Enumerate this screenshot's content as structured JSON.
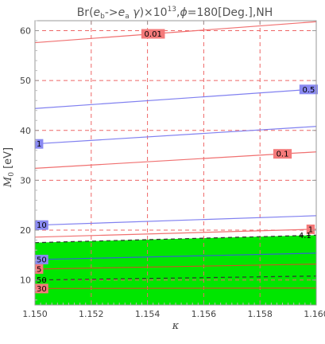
{
  "chart_data": {
    "type": "contour",
    "title": "Br(e_b->e_a γ)×10^13,φ=180[Deg.],NH",
    "xlabel": "κ",
    "ylabel": "M_0 [eV]",
    "xlim": [
      1.15,
      1.16
    ],
    "ylim": [
      5,
      62
    ],
    "x_ticks": [
      "1.150",
      "1.152",
      "1.154",
      "1.156",
      "1.158",
      "1.160"
    ],
    "y_ticks": [
      "10",
      "20",
      "30",
      "40",
      "50",
      "60"
    ],
    "grid": "dashed red at x ticks 1.152-1.158 and y ticks 10-60",
    "excluded_region": {
      "color": "#00e600",
      "y_bottom": 5,
      "y_top_at_x_min": 17.5,
      "y_top_at_x_max": 19.0
    },
    "contours": [
      {
        "label": "0.01",
        "color": "#f07070",
        "y_at_x_min": 57.6,
        "y_at_x_max": 61.8,
        "label_x": 1.1542,
        "label_bg": "#f47a7a"
      },
      {
        "label": "0.5",
        "color": "#8080f0",
        "y_at_x_min": 44.4,
        "y_at_x_max": 48.3,
        "label_x": 1.1598,
        "label_bg": "#8a8af2"
      },
      {
        "label": "1",
        "color": "#8080f0",
        "y_at_x_min": 37.3,
        "y_at_x_max": 40.8,
        "label_x": 1.15,
        "label_bg": "#8a8af2"
      },
      {
        "label": "0.1",
        "color": "#f07070",
        "y_at_x_min": 32.4,
        "y_at_x_max": 35.7,
        "label_x": 1.1588,
        "label_bg": "#f47a7a"
      },
      {
        "label": "10",
        "color": "#8080f0",
        "y_at_x_min": 21.0,
        "y_at_x_max": 22.9,
        "label_x": 1.1501,
        "label_bg": "#8a8af2"
      },
      {
        "label": "1",
        "color": "#f07070",
        "y_at_x_min": 18.6,
        "y_at_x_max": 20.2,
        "label_x": 1.1598,
        "label_bg": "#f47a7a"
      },
      {
        "label": "4.1",
        "color": "#333333",
        "dashed": true,
        "y_at_x_min": 17.5,
        "y_at_x_max": 19.0,
        "label_x": 1.1596,
        "label_bg": "none"
      },
      {
        "label": "50",
        "color": "#3366cc",
        "y_at_x_min": 14.1,
        "y_at_x_max": 15.4,
        "label_x": 1.1501,
        "label_bg": "#8a8af2"
      },
      {
        "label": "5",
        "color": "#cc5522",
        "y_at_x_min": 12.2,
        "y_at_x_max": 13.2,
        "label_x": 1.1501,
        "label_bg": "#f47a7a"
      },
      {
        "label": "50",
        "color": "#333333",
        "dashed": true,
        "y_at_x_min": 10.0,
        "y_at_x_max": 10.8,
        "label_x": 1.1502,
        "label_bg": "none"
      },
      {
        "label": "30",
        "color": "#cc5522",
        "y_at_x_min": 8.3,
        "y_at_x_max": 8.4,
        "label_x": 1.1501,
        "label_bg": "#f47a7a"
      }
    ]
  }
}
